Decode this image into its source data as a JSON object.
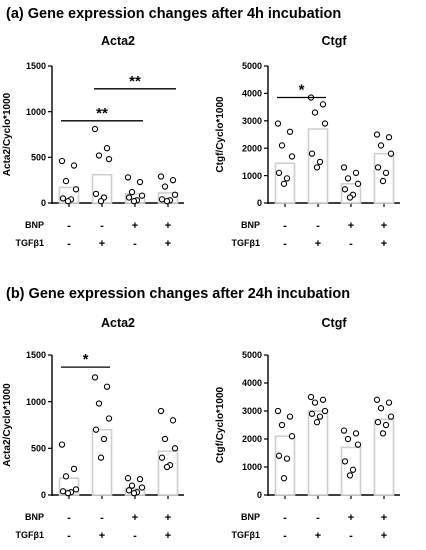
{
  "sections": [
    {
      "label": "(a) Gene expression changes after 4h incubation"
    },
    {
      "label": "(b) Gene expression changes after 24h incubation"
    }
  ],
  "chart_data": [
    {
      "type": "bar",
      "title": "Acta2",
      "ylabel": "Acta2/Cyclo*1000",
      "ylim": [
        0,
        1500
      ],
      "yticks": [
        0,
        500,
        1000,
        1500
      ],
      "grid": false,
      "row_labels": [
        "BNP",
        "TGFβ1"
      ],
      "conditions": [
        [
          "-",
          "-"
        ],
        [
          "-",
          "+"
        ],
        [
          "+",
          "-"
        ],
        [
          "+",
          "+"
        ]
      ],
      "values": [
        170,
        310,
        100,
        110
      ],
      "points": [
        [
          460,
          410,
          240,
          150,
          50,
          40,
          20
        ],
        [
          810,
          600,
          520,
          480,
          100,
          60,
          20
        ],
        [
          280,
          230,
          120,
          80,
          60,
          30,
          20
        ],
        [
          290,
          250,
          180,
          90,
          40,
          30,
          20
        ]
      ],
      "annotations": [
        {
          "from": 0,
          "to": 2,
          "y": 900,
          "label": "**"
        },
        {
          "from": 1,
          "to": 3,
          "y": 1250,
          "label": "**"
        }
      ]
    },
    {
      "type": "bar",
      "title": "Ctgf",
      "ylabel": "Ctgf/Cyclo*1000",
      "ylim": [
        0,
        5000
      ],
      "yticks": [
        0,
        1000,
        2000,
        3000,
        4000,
        5000
      ],
      "grid": false,
      "row_labels": [
        "BNP",
        "TGFβ1"
      ],
      "conditions": [
        [
          "-",
          "-"
        ],
        [
          "-",
          "+"
        ],
        [
          "+",
          "-"
        ],
        [
          "+",
          "+"
        ]
      ],
      "values": [
        1450,
        2700,
        700,
        1800
      ],
      "points": [
        [
          2900,
          2600,
          2100,
          1700,
          1100,
          900,
          700
        ],
        [
          3850,
          3600,
          3300,
          2900,
          1800,
          1500,
          1300
        ],
        [
          1300,
          1100,
          900,
          700,
          500,
          300,
          200
        ],
        [
          2500,
          2400,
          2100,
          1800,
          1300,
          1100,
          800
        ]
      ],
      "annotations": [
        {
          "from": 0,
          "to": 1,
          "y": 3850,
          "label": "*"
        }
      ]
    },
    {
      "type": "bar",
      "title": "Acta2",
      "ylabel": "Acta2/Cyclo*1000",
      "ylim": [
        0,
        1500
      ],
      "yticks": [
        0,
        500,
        1000,
        1500
      ],
      "grid": false,
      "row_labels": [
        "BNP",
        "TGFβ1"
      ],
      "conditions": [
        [
          "-",
          "-"
        ],
        [
          "-",
          "+"
        ],
        [
          "+",
          "-"
        ],
        [
          "+",
          "+"
        ]
      ],
      "values": [
        180,
        700,
        70,
        470
      ],
      "points": [
        [
          540,
          280,
          200,
          60,
          40,
          30,
          20
        ],
        [
          1260,
          1160,
          980,
          820,
          700,
          600,
          400
        ],
        [
          180,
          170,
          100,
          80,
          50,
          30,
          20
        ],
        [
          900,
          800,
          600,
          500,
          400,
          320,
          300
        ]
      ],
      "annotations": [
        {
          "from": 0,
          "to": 1,
          "y": 1370,
          "label": "*"
        }
      ]
    },
    {
      "type": "bar",
      "title": "Ctgf",
      "ylabel": "Ctgf/Cyclo*1000",
      "ylim": [
        0,
        5000
      ],
      "yticks": [
        0,
        1000,
        2000,
        3000,
        4000,
        5000
      ],
      "grid": false,
      "row_labels": [
        "BNP",
        "TGFβ1"
      ],
      "conditions": [
        [
          "-",
          "-"
        ],
        [
          "-",
          "+"
        ],
        [
          "+",
          "-"
        ],
        [
          "+",
          "+"
        ]
      ],
      "values": [
        2100,
        3000,
        1700,
        2700
      ],
      "points": [
        [
          3000,
          2800,
          2500,
          2100,
          1400,
          1300,
          600
        ],
        [
          3500,
          3400,
          3300,
          3000,
          2900,
          2800,
          2600
        ],
        [
          2300,
          2200,
          2000,
          1800,
          1200,
          900,
          700
        ],
        [
          3400,
          3300,
          3100,
          2800,
          2600,
          2500,
          2200
        ]
      ],
      "annotations": []
    }
  ]
}
